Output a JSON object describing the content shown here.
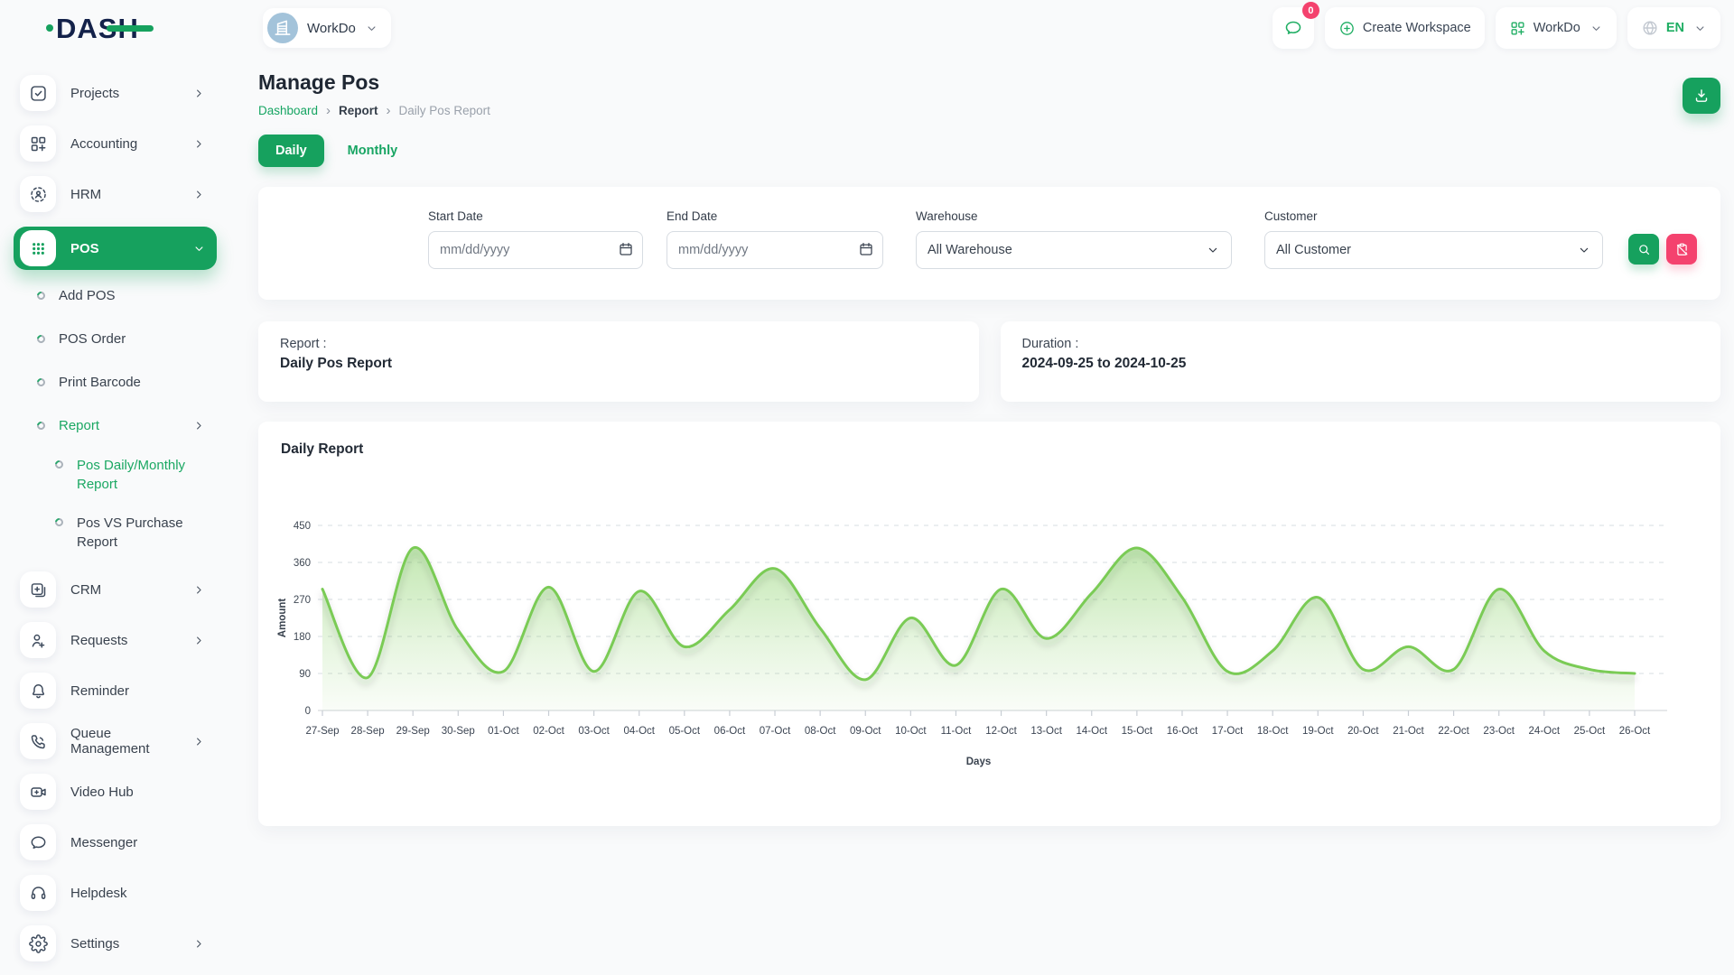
{
  "colors": {
    "primary_green": "#16A15E",
    "chart_line_green": "#7ACB55",
    "chart_fill_green": "#7ACB55",
    "pink": "#F4426E",
    "logo_navy": "#14224A"
  },
  "brand": {
    "logo_text": "DASH"
  },
  "topbar": {
    "workspace_name": "WorkDo",
    "workspace_avatar_icon": "building-icon",
    "messages_icon": "chat-bubble-icon",
    "messages_badge": "0",
    "create_workspace_label": "Create Workspace",
    "create_workspace_icon": "plus-circle-icon",
    "workdo_menu_label": "WorkDo",
    "workdo_menu_icon": "grid-plus-icon",
    "language_icon": "globe-icon",
    "language_code": "EN"
  },
  "sidebar": {
    "items": [
      {
        "type": "item",
        "label": "Projects",
        "icon": "check-square",
        "chevron": "right"
      },
      {
        "type": "item",
        "label": "Accounting",
        "icon": "grid-plus",
        "chevron": "right"
      },
      {
        "type": "item",
        "label": "HRM",
        "icon": "person-scan",
        "chevron": "right"
      },
      {
        "type": "item",
        "label": "POS",
        "icon": "dots-grid",
        "chevron": "down",
        "active": true
      },
      {
        "type": "sub",
        "label": "Add POS"
      },
      {
        "type": "sub",
        "label": "POS Order"
      },
      {
        "type": "sub",
        "label": "Print Barcode"
      },
      {
        "type": "sub",
        "label": "Report",
        "chevron": "right",
        "active": true
      },
      {
        "type": "subsub",
        "label": "Pos Daily/Monthly Report",
        "active": true
      },
      {
        "type": "subsub",
        "label": "Pos VS Purchase Report"
      },
      {
        "type": "item",
        "label": "CRM",
        "icon": "id-card",
        "chevron": "right"
      },
      {
        "type": "item",
        "label": "Requests",
        "icon": "user-plus",
        "chevron": "right"
      },
      {
        "type": "item",
        "label": "Reminder",
        "icon": "bell"
      },
      {
        "type": "item",
        "label": "Queue Management",
        "icon": "phone",
        "chevron": "right"
      },
      {
        "type": "item",
        "label": "Video Hub",
        "icon": "video-camera"
      },
      {
        "type": "item",
        "label": "Messenger",
        "icon": "chat-bubble"
      },
      {
        "type": "item",
        "label": "Helpdesk",
        "icon": "headset"
      },
      {
        "type": "item",
        "label": "Settings",
        "icon": "gear",
        "chevron": "right"
      }
    ]
  },
  "page": {
    "title": "Manage Pos",
    "breadcrumb": [
      "Dashboard",
      "Report",
      "Daily Pos Report"
    ],
    "breadcrumb_separator": "›",
    "tabs": [
      {
        "label": "Daily",
        "active": true
      },
      {
        "label": "Monthly",
        "active": false
      }
    ],
    "download_icon": "download-icon"
  },
  "filters": {
    "start_date": {
      "label": "Start Date",
      "placeholder": "mm/dd/yyyy",
      "value": "",
      "icon": "calendar-icon"
    },
    "end_date": {
      "label": "End Date",
      "placeholder": "mm/dd/yyyy",
      "value": "",
      "icon": "calendar-icon"
    },
    "warehouse": {
      "label": "Warehouse",
      "value": "All Warehouse"
    },
    "customer": {
      "label": "Customer",
      "value": "All Customer"
    },
    "search_icon": "magnifier-icon",
    "reset_icon": "clipboard-off-icon"
  },
  "summary_cards": {
    "report": {
      "label": "Report :",
      "value": "Daily Pos Report"
    },
    "duration": {
      "label": "Duration :",
      "value": "2024-09-25 to 2024-10-25"
    }
  },
  "chart_card": {
    "title": "Daily Report"
  },
  "chart_data": {
    "type": "area",
    "title": "Daily Report",
    "xlabel": "Days",
    "ylabel": "Amount",
    "ylim": [
      0,
      450
    ],
    "yticks": [
      0,
      90,
      180,
      270,
      360,
      450
    ],
    "grid": "dashed-horizontal",
    "legend": "none",
    "categories": [
      "27-Sep",
      "28-Sep",
      "29-Sep",
      "30-Sep",
      "01-Oct",
      "02-Oct",
      "03-Oct",
      "04-Oct",
      "05-Oct",
      "06-Oct",
      "07-Oct",
      "08-Oct",
      "09-Oct",
      "10-Oct",
      "11-Oct",
      "12-Oct",
      "13-Oct",
      "14-Oct",
      "15-Oct",
      "16-Oct",
      "17-Oct",
      "18-Oct",
      "19-Oct",
      "20-Oct",
      "21-Oct",
      "22-Oct",
      "23-Oct",
      "24-Oct",
      "25-Oct",
      "26-Oct"
    ],
    "series": [
      {
        "name": "Amount",
        "values": [
          295,
          80,
          395,
          195,
          95,
          300,
          95,
          290,
          155,
          245,
          345,
          200,
          75,
          225,
          110,
          295,
          175,
          285,
          395,
          275,
          95,
          145,
          275,
          100,
          155,
          100,
          295,
          145,
          100,
          90
        ]
      }
    ]
  }
}
